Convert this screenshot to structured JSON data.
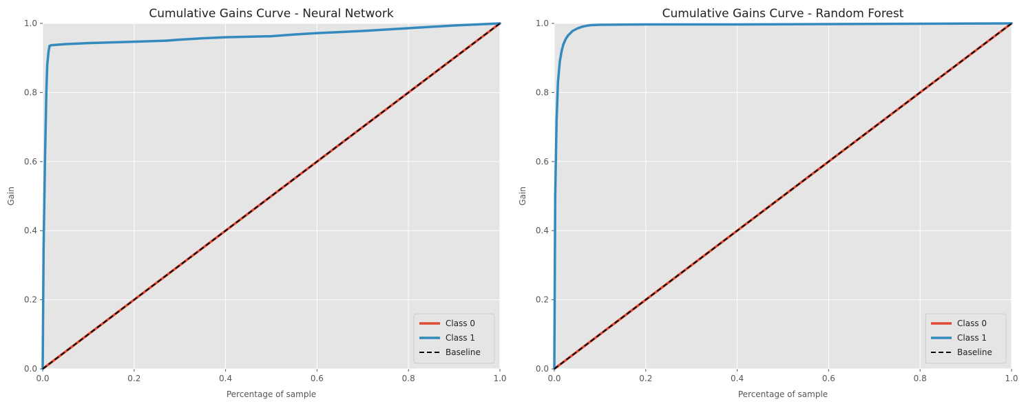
{
  "colors": {
    "class0": "#E24A33",
    "class1": "#348ABD",
    "baseline": "#000000",
    "plot_bg": "#E5E5E5"
  },
  "chart_data": [
    {
      "type": "line",
      "title": "Cumulative Gains Curve - Neural Network",
      "xlabel": "Percentage of sample",
      "ylabel": "Gain",
      "xlim": [
        0,
        1
      ],
      "ylim": [
        0,
        1
      ],
      "xticks": [
        "0.0",
        "0.2",
        "0.4",
        "0.6",
        "0.8",
        "1.0"
      ],
      "yticks": [
        "0.0",
        "0.2",
        "0.4",
        "0.6",
        "0.8",
        "1.0"
      ],
      "grid": true,
      "legend_position": "lower-right",
      "series": [
        {
          "name": "Class 0",
          "color_key": "class0",
          "x": [
            0,
            1
          ],
          "y": [
            0,
            1
          ]
        },
        {
          "name": "Class 1",
          "color_key": "class1",
          "x": [
            0,
            0.002,
            0.005,
            0.008,
            0.01,
            0.013,
            0.015,
            0.02,
            0.05,
            0.1,
            0.2,
            0.27,
            0.3,
            0.35,
            0.4,
            0.5,
            0.55,
            0.6,
            0.7,
            0.8,
            0.9,
            1.0
          ],
          "y": [
            0,
            0.35,
            0.6,
            0.8,
            0.88,
            0.92,
            0.935,
            0.937,
            0.94,
            0.943,
            0.947,
            0.95,
            0.953,
            0.957,
            0.96,
            0.963,
            0.968,
            0.972,
            0.978,
            0.986,
            0.994,
            1.0
          ]
        },
        {
          "name": "Baseline",
          "color_key": "baseline",
          "dashed": true,
          "x": [
            0,
            1
          ],
          "y": [
            0,
            1
          ]
        }
      ]
    },
    {
      "type": "line",
      "title": "Cumulative Gains Curve - Random Forest",
      "xlabel": "Percentage of sample",
      "ylabel": "Gain",
      "xlim": [
        0,
        1
      ],
      "ylim": [
        0,
        1
      ],
      "xticks": [
        "0.0",
        "0.2",
        "0.4",
        "0.6",
        "0.8",
        "1.0"
      ],
      "yticks": [
        "0.0",
        "0.2",
        "0.4",
        "0.6",
        "0.8",
        "1.0"
      ],
      "grid": true,
      "legend_position": "lower-right",
      "series": [
        {
          "name": "Class 0",
          "color_key": "class0",
          "x": [
            0,
            1
          ],
          "y": [
            0,
            1
          ]
        },
        {
          "name": "Class 1",
          "color_key": "class1",
          "x": [
            0,
            0.002,
            0.005,
            0.008,
            0.012,
            0.016,
            0.02,
            0.025,
            0.03,
            0.04,
            0.05,
            0.06,
            0.07,
            0.08,
            0.1,
            0.2,
            0.4,
            0.6,
            0.8,
            1.0
          ],
          "y": [
            0,
            0.5,
            0.72,
            0.83,
            0.89,
            0.92,
            0.94,
            0.955,
            0.965,
            0.978,
            0.985,
            0.99,
            0.993,
            0.995,
            0.996,
            0.997,
            0.997,
            0.998,
            0.999,
            1.0
          ]
        },
        {
          "name": "Baseline",
          "color_key": "baseline",
          "dashed": true,
          "x": [
            0,
            1
          ],
          "y": [
            0,
            1
          ]
        }
      ]
    }
  ]
}
